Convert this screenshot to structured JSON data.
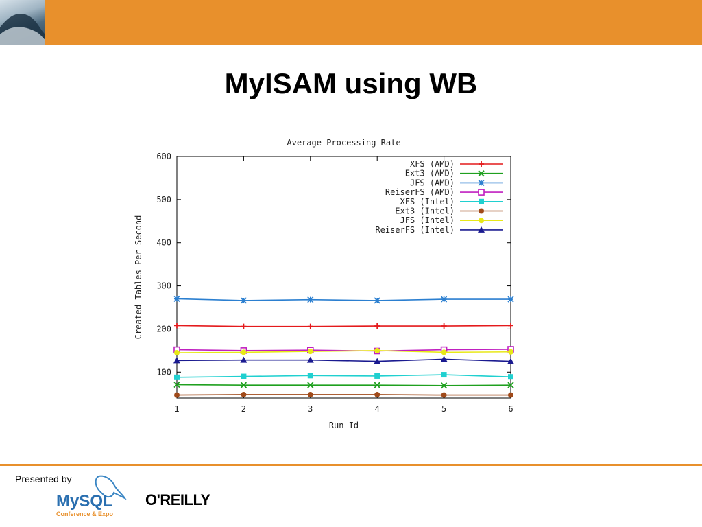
{
  "slide": {
    "title": "MyISAM using WB",
    "presented_by": "Presented by",
    "logos": {
      "mysql": "MySQL",
      "mysql_subtitle": "Conference & Expo",
      "oreilly": "O'REILLY"
    },
    "colors": {
      "accent": "#e8902c"
    },
    "icons": [
      "wave-image",
      "dolphin-icon"
    ]
  },
  "chart_data": {
    "type": "line",
    "title": "Average Processing Rate",
    "xlabel": "Run Id",
    "ylabel": "Created Tables Per Second",
    "x": [
      1,
      2,
      3,
      4,
      5,
      6
    ],
    "xlim": [
      1,
      6
    ],
    "ylim": [
      40,
      600
    ],
    "yticks": [
      100,
      200,
      300,
      400,
      500,
      600
    ],
    "xticks": [
      1,
      2,
      3,
      4,
      5,
      6
    ],
    "grid": false,
    "legend_position": "top-right",
    "series": [
      {
        "name": "XFS (AMD)",
        "color": "#e41a1c",
        "marker": "plus",
        "values": [
          208,
          206,
          206,
          207,
          207,
          208
        ]
      },
      {
        "name": "Ext3 (AMD)",
        "color": "#1fa01f",
        "marker": "cross",
        "values": [
          71,
          70,
          70,
          70,
          69,
          70
        ]
      },
      {
        "name": "JFS (AMD)",
        "color": "#2b7fd0",
        "marker": "star",
        "values": [
          270,
          266,
          268,
          266,
          269,
          269
        ]
      },
      {
        "name": "ReiserFS (AMD)",
        "color": "#c020c0",
        "marker": "square-open",
        "values": [
          152,
          150,
          151,
          149,
          152,
          153
        ]
      },
      {
        "name": "XFS (Intel)",
        "color": "#20d0d0",
        "marker": "square-filled",
        "values": [
          88,
          90,
          92,
          91,
          94,
          89
        ]
      },
      {
        "name": "Ext3 (Intel)",
        "color": "#a04a1a",
        "marker": "circle-filled",
        "values": [
          47,
          48,
          48,
          48,
          47,
          47
        ]
      },
      {
        "name": "JFS (Intel)",
        "color": "#e8e818",
        "marker": "circle-filled",
        "values": [
          145,
          146,
          148,
          150,
          146,
          147
        ]
      },
      {
        "name": "ReiserFS (Intel)",
        "color": "#1a1a90",
        "marker": "triangle-filled",
        "values": [
          127,
          128,
          128,
          125,
          130,
          125
        ]
      }
    ]
  }
}
